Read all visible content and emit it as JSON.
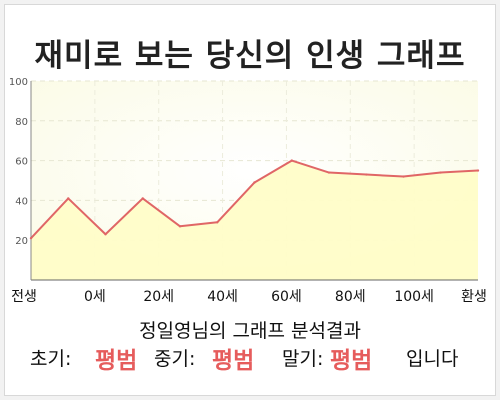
{
  "title": "재미로 보는 당신의 인생 그래프",
  "summary": "정일영님의 그래프 분석결과",
  "result": {
    "early_label": "초기:",
    "early_value": "평범",
    "mid_label": "중기:",
    "mid_value": "평범",
    "late_label": "말기:",
    "late_value": "평범",
    "suffix": "입니다"
  },
  "colors": {
    "line": "#e06666",
    "fill": "#fffdc8",
    "result": "#e65c5c"
  },
  "chart_data": {
    "type": "area",
    "title": "재미로 보는 당신의 인생 그래프",
    "xlabel": "",
    "ylabel": "",
    "x_tick_labels": [
      "전생",
      "0세",
      "20세",
      "40세",
      "60세",
      "80세",
      "100세",
      "환생"
    ],
    "y_ticks": [
      20,
      40,
      60,
      80,
      100
    ],
    "ylim": [
      0,
      100
    ],
    "grid": true,
    "legend": "none",
    "series": [
      {
        "values": [
          21,
          41,
          23,
          41,
          27,
          29,
          49,
          60,
          54,
          53,
          52,
          54,
          55
        ]
      }
    ]
  }
}
